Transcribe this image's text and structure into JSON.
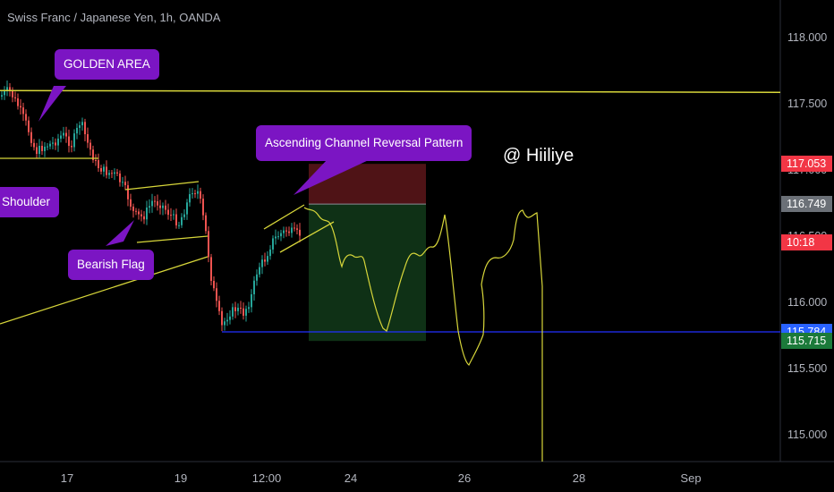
{
  "chart_data": {
    "type": "candlestick",
    "title": "Swiss Franc / Japanese Yen, 1h, OANDA",
    "y_ticks": [
      "118.000",
      "117.500",
      "117.000",
      "116.500",
      "116.000",
      "115.500",
      "115.000"
    ],
    "x_ticks": [
      "17",
      "19",
      "12:00",
      "24",
      "26",
      "28",
      "Sep"
    ],
    "ylim": [
      114.75,
      118.35
    ],
    "price_labels": [
      {
        "label": "117.053",
        "price": 117.053,
        "color": "#f23645"
      },
      {
        "label": "116.749",
        "price": 116.749,
        "color": "#6b7077"
      },
      {
        "label": "10:18",
        "price": 116.46,
        "color": "#f23645"
      },
      {
        "label": "115.784",
        "price": 115.784,
        "color": "#2962ff"
      },
      {
        "label": "115.715",
        "price": 115.715,
        "color": "#1b7a3a"
      }
    ],
    "position": {
      "entry": 116.749,
      "stop": 117.053,
      "target": 115.715
    },
    "horizontal_levels": [
      {
        "name": "golden-area-line",
        "price": 117.6,
        "color": "#d7d63a"
      },
      {
        "name": "support-line",
        "price": 115.784,
        "color": "#2230ff"
      }
    ],
    "annotations": [
      "GOLDEN AREA",
      "Shoulder",
      "Bearish Flag",
      "Ascending Channel Reversal Pattern"
    ],
    "author": "@ Hiiliye"
  },
  "colors": {
    "background": "#000000",
    "bull": "#26a69a",
    "bear": "#ef5350",
    "drawing": "#d7d63a",
    "callout": "#7b15c3"
  }
}
